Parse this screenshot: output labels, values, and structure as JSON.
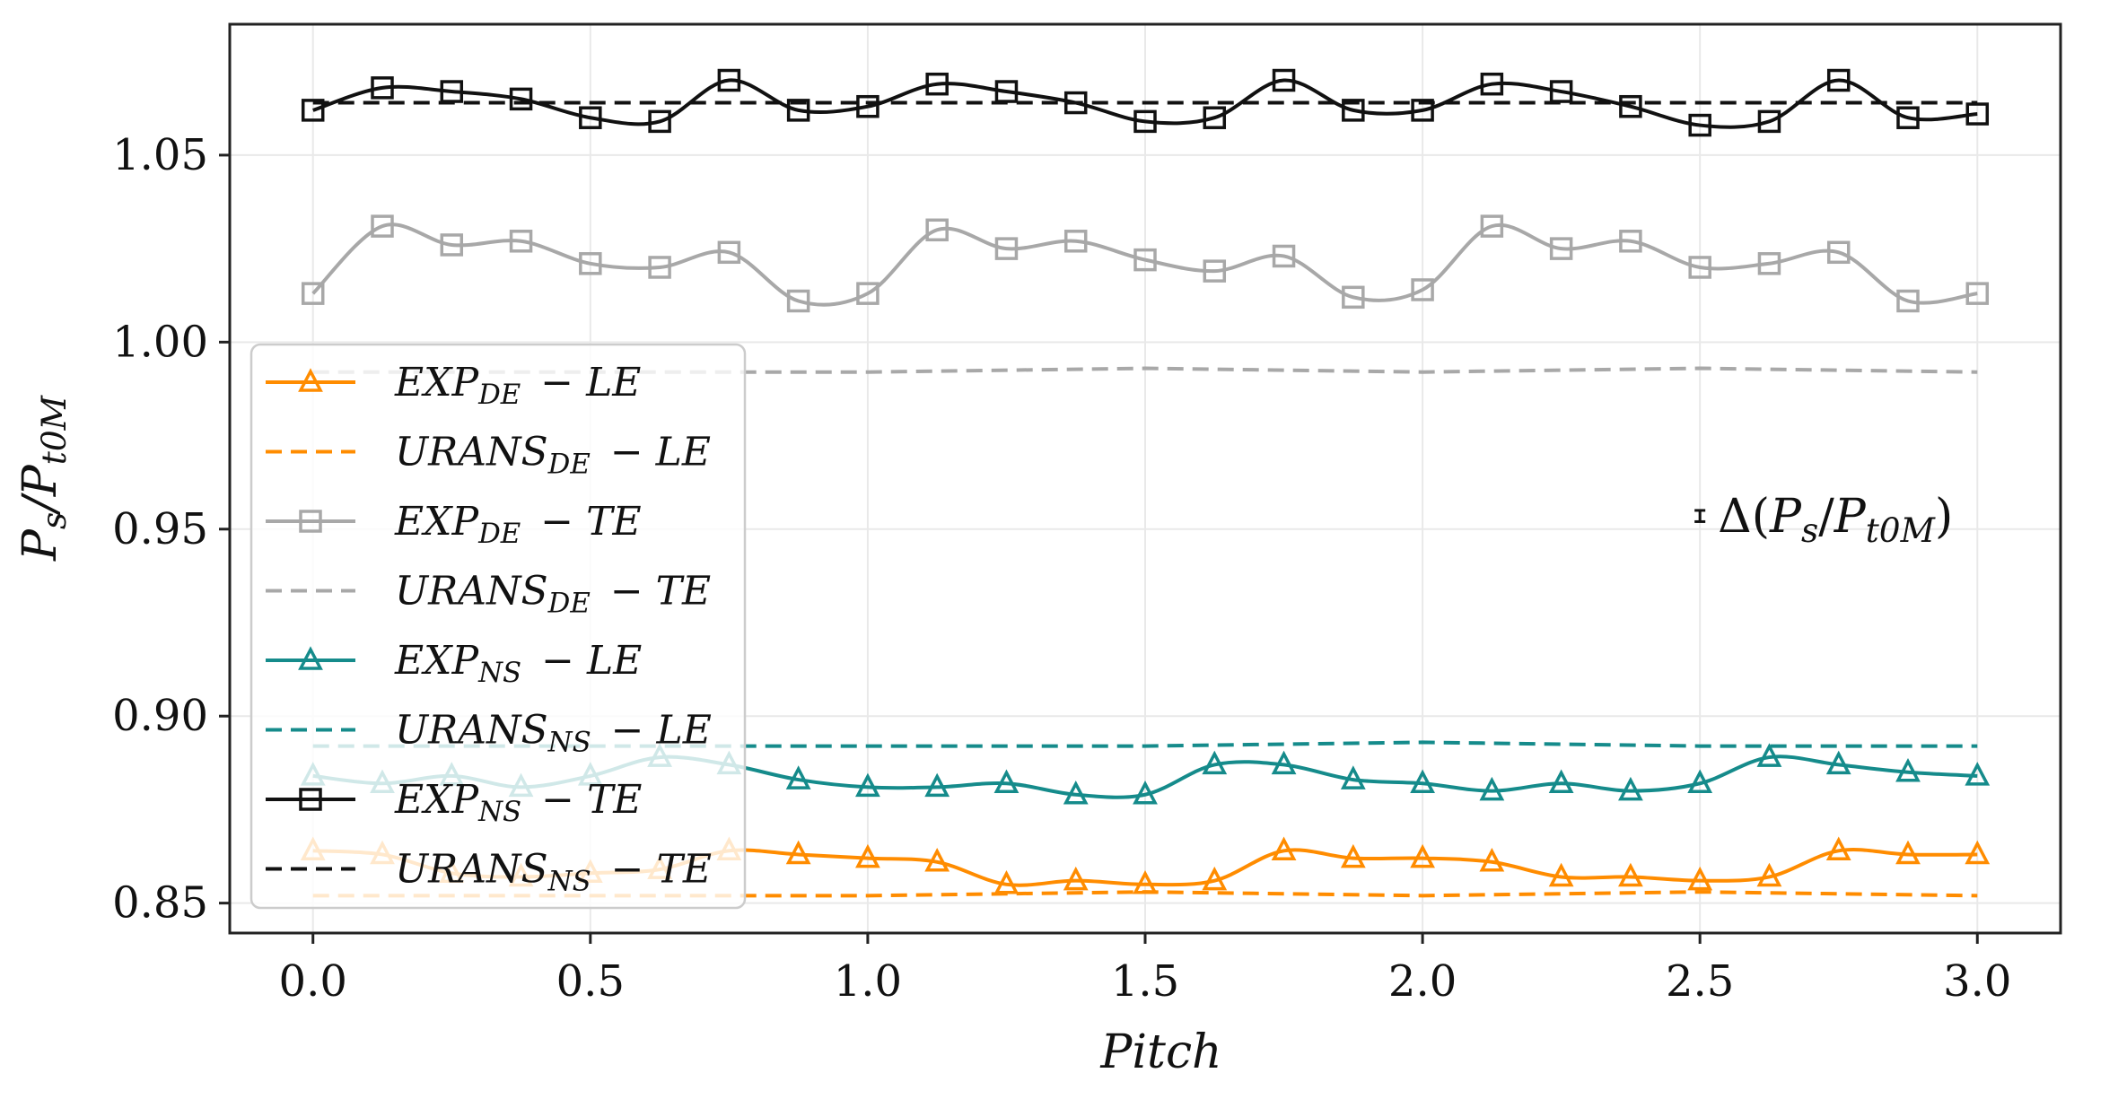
{
  "chart_data": {
    "type": "line",
    "xlabel": "Pitch",
    "ylabel": "Ps/Pt0M",
    "xlim": [
      -0.15,
      3.15
    ],
    "ylim": [
      0.842,
      1.085
    ],
    "xticks": [
      0.0,
      0.5,
      1.0,
      1.5,
      2.0,
      2.5,
      3.0
    ],
    "xtick_labels": [
      "0.0",
      "0.5",
      "1.0",
      "1.5",
      "2.0",
      "2.5",
      "3.0"
    ],
    "yticks": [
      0.85,
      0.9,
      0.95,
      1.0,
      1.05
    ],
    "ytick_labels": [
      "0.85",
      "0.90",
      "0.95",
      "1.00",
      "1.05"
    ],
    "grid": true,
    "legend_position": "left",
    "series": [
      {
        "name": "EXP_DE − LE",
        "label_main": "EXP",
        "label_sub": "DE",
        "label_tail": "− LE",
        "color": "#ff8c00",
        "style": "solid",
        "marker": "triangle",
        "x": [
          0.0,
          0.125,
          0.25,
          0.375,
          0.5,
          0.625,
          0.75,
          0.875,
          1.0,
          1.125,
          1.25,
          1.375,
          1.5,
          1.625,
          1.75,
          1.875,
          2.0,
          2.125,
          2.25,
          2.375,
          2.5,
          2.625,
          2.75,
          2.875,
          3.0
        ],
        "values": [
          0.864,
          0.863,
          0.858,
          0.857,
          0.858,
          0.859,
          0.864,
          0.863,
          0.862,
          0.861,
          0.855,
          0.856,
          0.855,
          0.856,
          0.864,
          0.862,
          0.862,
          0.861,
          0.857,
          0.857,
          0.856,
          0.857,
          0.864,
          0.863,
          0.863
        ]
      },
      {
        "name": "URANS_DE − LE",
        "label_main": "URANS",
        "label_sub": "DE",
        "label_tail": "− LE",
        "color": "#ff8c00",
        "style": "dashed",
        "marker": "none",
        "x": [
          0.0,
          0.5,
          1.0,
          1.5,
          2.0,
          2.5,
          3.0
        ],
        "values": [
          0.852,
          0.852,
          0.852,
          0.853,
          0.852,
          0.853,
          0.852
        ]
      },
      {
        "name": "EXP_DE − TE",
        "label_main": "EXP",
        "label_sub": "DE",
        "label_tail": "− TE",
        "color": "#a8a8a8",
        "style": "solid",
        "marker": "square",
        "x": [
          0.0,
          0.125,
          0.25,
          0.375,
          0.5,
          0.625,
          0.75,
          0.875,
          1.0,
          1.125,
          1.25,
          1.375,
          1.5,
          1.625,
          1.75,
          1.875,
          2.0,
          2.125,
          2.25,
          2.375,
          2.5,
          2.625,
          2.75,
          2.875,
          3.0
        ],
        "values": [
          1.013,
          1.031,
          1.026,
          1.027,
          1.021,
          1.02,
          1.024,
          1.011,
          1.013,
          1.03,
          1.025,
          1.027,
          1.022,
          1.019,
          1.023,
          1.012,
          1.014,
          1.031,
          1.025,
          1.027,
          1.02,
          1.021,
          1.024,
          1.011,
          1.013
        ]
      },
      {
        "name": "URANS_DE − TE",
        "label_main": "URANS",
        "label_sub": "DE",
        "label_tail": "− TE",
        "color": "#a8a8a8",
        "style": "dashed",
        "marker": "none",
        "x": [
          0.0,
          0.5,
          1.0,
          1.5,
          2.0,
          2.5,
          3.0
        ],
        "values": [
          0.992,
          0.992,
          0.992,
          0.993,
          0.992,
          0.993,
          0.992
        ]
      },
      {
        "name": "EXP_NS − LE",
        "label_main": "EXP",
        "label_sub": "NS",
        "label_tail": "− LE",
        "color": "#158b8b",
        "style": "solid",
        "marker": "triangle",
        "x": [
          0.0,
          0.125,
          0.25,
          0.375,
          0.5,
          0.625,
          0.75,
          0.875,
          1.0,
          1.125,
          1.25,
          1.375,
          1.5,
          1.625,
          1.75,
          1.875,
          2.0,
          2.125,
          2.25,
          2.375,
          2.5,
          2.625,
          2.75,
          2.875,
          3.0
        ],
        "values": [
          0.884,
          0.882,
          0.884,
          0.881,
          0.884,
          0.889,
          0.887,
          0.883,
          0.881,
          0.881,
          0.882,
          0.879,
          0.879,
          0.887,
          0.887,
          0.883,
          0.882,
          0.88,
          0.882,
          0.88,
          0.882,
          0.889,
          0.887,
          0.885,
          0.884
        ]
      },
      {
        "name": "URANS_NS − LE",
        "label_main": "URANS",
        "label_sub": "NS",
        "label_tail": "− LE",
        "color": "#158b8b",
        "style": "dashed",
        "marker": "none",
        "x": [
          0.0,
          0.5,
          1.0,
          1.5,
          2.0,
          2.5,
          3.0
        ],
        "values": [
          0.892,
          0.892,
          0.892,
          0.892,
          0.893,
          0.892,
          0.892
        ]
      },
      {
        "name": "EXP_NS − TE",
        "label_main": "EXP",
        "label_sub": "NS",
        "label_tail": "− TE",
        "color": "#111111",
        "style": "solid",
        "marker": "square",
        "x": [
          0.0,
          0.125,
          0.25,
          0.375,
          0.5,
          0.625,
          0.75,
          0.875,
          1.0,
          1.125,
          1.25,
          1.375,
          1.5,
          1.625,
          1.75,
          1.875,
          2.0,
          2.125,
          2.25,
          2.375,
          2.5,
          2.625,
          2.75,
          2.875,
          3.0
        ],
        "values": [
          1.062,
          1.068,
          1.067,
          1.065,
          1.06,
          1.059,
          1.07,
          1.062,
          1.063,
          1.069,
          1.067,
          1.064,
          1.059,
          1.06,
          1.07,
          1.062,
          1.062,
          1.069,
          1.067,
          1.063,
          1.058,
          1.059,
          1.07,
          1.06,
          1.061
        ]
      },
      {
        "name": "URANS_NS − TE",
        "label_main": "URANS",
        "label_sub": "NS",
        "label_tail": "− TE",
        "color": "#111111",
        "style": "dashed",
        "marker": "none",
        "x": [
          0.0,
          0.5,
          1.0,
          1.5,
          2.0,
          2.5,
          3.0
        ],
        "values": [
          1.064,
          1.064,
          1.064,
          1.064,
          1.064,
          1.064,
          1.064
        ]
      }
    ],
    "annotation": {
      "text": "Δ(Ps/Pt0M)",
      "x": 2.5,
      "y": 0.9535,
      "error_halfwidth": 0.0015
    }
  }
}
